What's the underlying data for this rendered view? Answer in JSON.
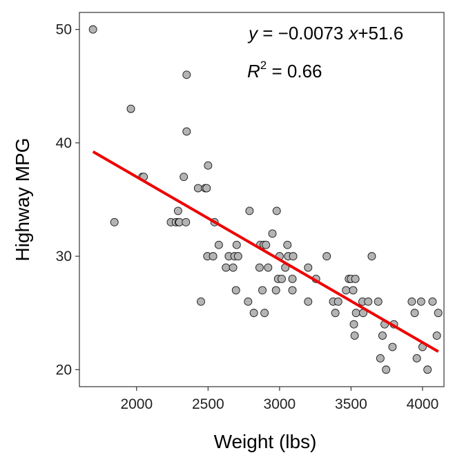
{
  "chart_data": {
    "type": "scatter",
    "xlabel": "Weight (lbs)",
    "ylabel": "Highway MPG",
    "xlim": [
      1600,
      4150
    ],
    "ylim": [
      18.5,
      51.5
    ],
    "xticks": [
      2000,
      2500,
      3000,
      3500,
      4000
    ],
    "yticks": [
      20,
      30,
      40,
      50
    ],
    "grid": false,
    "points": [
      [
        1695,
        50
      ],
      [
        1845,
        33
      ],
      [
        1960,
        43
      ],
      [
        2040,
        37
      ],
      [
        2050,
        37
      ],
      [
        2240,
        33
      ],
      [
        2275,
        33
      ],
      [
        2290,
        34
      ],
      [
        2295,
        33
      ],
      [
        2300,
        33
      ],
      [
        2330,
        37
      ],
      [
        2345,
        33
      ],
      [
        2350,
        46
      ],
      [
        2350,
        41
      ],
      [
        2430,
        36
      ],
      [
        2450,
        26
      ],
      [
        2480,
        36
      ],
      [
        2490,
        36
      ],
      [
        2495,
        30
      ],
      [
        2500,
        38
      ],
      [
        2535,
        30
      ],
      [
        2545,
        33
      ],
      [
        2575,
        31
      ],
      [
        2625,
        29
      ],
      [
        2645,
        30
      ],
      [
        2675,
        29
      ],
      [
        2685,
        30
      ],
      [
        2695,
        27
      ],
      [
        2700,
        31
      ],
      [
        2710,
        30
      ],
      [
        2780,
        26
      ],
      [
        2790,
        34
      ],
      [
        2820,
        25
      ],
      [
        2860,
        29
      ],
      [
        2865,
        31
      ],
      [
        2880,
        27
      ],
      [
        2890,
        31
      ],
      [
        2895,
        25
      ],
      [
        2905,
        31
      ],
      [
        2920,
        29
      ],
      [
        2950,
        32
      ],
      [
        2975,
        27
      ],
      [
        2980,
        34
      ],
      [
        2990,
        28
      ],
      [
        3000,
        30
      ],
      [
        3015,
        28
      ],
      [
        3040,
        29
      ],
      [
        3055,
        31
      ],
      [
        3060,
        30
      ],
      [
        3090,
        27
      ],
      [
        3090,
        28
      ],
      [
        3095,
        30
      ],
      [
        3200,
        29
      ],
      [
        3200,
        26
      ],
      [
        3255,
        28
      ],
      [
        3330,
        30
      ],
      [
        3375,
        26
      ],
      [
        3390,
        25
      ],
      [
        3410,
        26
      ],
      [
        3465,
        27
      ],
      [
        3485,
        28
      ],
      [
        3500,
        28
      ],
      [
        3515,
        27
      ],
      [
        3520,
        24
      ],
      [
        3525,
        23
      ],
      [
        3530,
        28
      ],
      [
        3535,
        25
      ],
      [
        3580,
        26
      ],
      [
        3585,
        25
      ],
      [
        3620,
        26
      ],
      [
        3645,
        30
      ],
      [
        3690,
        26
      ],
      [
        3705,
        21
      ],
      [
        3720,
        23
      ],
      [
        3735,
        24
      ],
      [
        3745,
        20
      ],
      [
        3790,
        22
      ],
      [
        3800,
        24
      ],
      [
        3925,
        26
      ],
      [
        3945,
        25
      ],
      [
        3960,
        21
      ],
      [
        3990,
        26
      ],
      [
        4000,
        22
      ],
      [
        4035,
        20
      ],
      [
        4070,
        26
      ],
      [
        4100,
        23
      ],
      [
        4110,
        25
      ]
    ],
    "fit_line": {
      "slope": -0.0073,
      "intercept": 51.6,
      "x_range": [
        1695,
        4110
      ],
      "color": "#ee0000"
    },
    "point_color": "#b4b4b4",
    "point_edge_color": "#1a1a1a",
    "annotations": {
      "equation": {
        "y": "y",
        "eq": " = ",
        "minus": "−",
        "coef": "0.0073",
        "x": "x",
        "plus": "+",
        "intercept": "51.6"
      },
      "r_squared": {
        "r": "R",
        "exp": "2",
        "value": " = 0.66"
      }
    }
  }
}
